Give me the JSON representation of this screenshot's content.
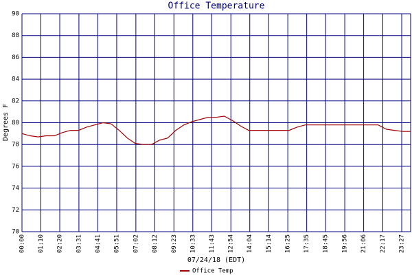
{
  "chart_data": {
    "type": "line",
    "title": "Office Temperature",
    "x_label": "07/24/18 (EDT)",
    "y_label": "Degrees F",
    "x": [
      0,
      0.5,
      1,
      1.5,
      2,
      2.5,
      3,
      3.5,
      4,
      4.5,
      5,
      5.5,
      6,
      6.5,
      7,
      7.5,
      8,
      8.5,
      9,
      9.5,
      10,
      10.5,
      11,
      11.5,
      12,
      12.5,
      13,
      13.5,
      14,
      14.5,
      15,
      15.5,
      16,
      16.5,
      17,
      17.5,
      18,
      18.5,
      19,
      19.5,
      20,
      20.5,
      21,
      21.5,
      22,
      22.5,
      23,
      23.5,
      24
    ],
    "series": [
      {
        "name": "Office Temp",
        "color": "#a00000",
        "values": [
          79.0,
          78.8,
          78.7,
          78.8,
          78.8,
          79.1,
          79.3,
          79.3,
          79.6,
          79.8,
          80.0,
          79.9,
          79.3,
          78.6,
          78.1,
          78.0,
          78.0,
          78.4,
          78.6,
          79.3,
          79.8,
          80.1,
          80.3,
          80.5,
          80.5,
          80.6,
          80.2,
          79.7,
          79.3,
          79.3,
          79.3,
          79.3,
          79.3,
          79.3,
          79.6,
          79.8,
          79.8,
          79.8,
          79.8,
          79.8,
          79.8,
          79.8,
          79.8,
          79.8,
          79.8,
          79.4,
          79.3,
          79.2,
          79.2
        ]
      }
    ],
    "xlim": [
      0,
      24
    ],
    "xticks": [
      {
        "value": 0,
        "label": "00:00"
      },
      {
        "value": 1.1667,
        "label": "01:10"
      },
      {
        "value": 2.3333,
        "label": "02:20"
      },
      {
        "value": 3.5167,
        "label": "03:31"
      },
      {
        "value": 4.6833,
        "label": "04:41"
      },
      {
        "value": 5.85,
        "label": "05:51"
      },
      {
        "value": 7.0333,
        "label": "07:02"
      },
      {
        "value": 8.2,
        "label": "08:12"
      },
      {
        "value": 9.3833,
        "label": "09:23"
      },
      {
        "value": 10.55,
        "label": "10:33"
      },
      {
        "value": 11.7167,
        "label": "11:43"
      },
      {
        "value": 12.9,
        "label": "12:54"
      },
      {
        "value": 14.0667,
        "label": "14:04"
      },
      {
        "value": 15.2333,
        "label": "15:14"
      },
      {
        "value": 16.4167,
        "label": "16:25"
      },
      {
        "value": 17.5833,
        "label": "17:35"
      },
      {
        "value": 18.75,
        "label": "18:45"
      },
      {
        "value": 19.9333,
        "label": "19:56"
      },
      {
        "value": 21.1,
        "label": "21:06"
      },
      {
        "value": 22.2833,
        "label": "22:17"
      },
      {
        "value": 23.45,
        "label": "23:27"
      }
    ],
    "ylim": [
      70,
      90
    ],
    "yticks": [
      70,
      72,
      74,
      76,
      78,
      80,
      82,
      84,
      86,
      88,
      90
    ],
    "grid": true
  }
}
